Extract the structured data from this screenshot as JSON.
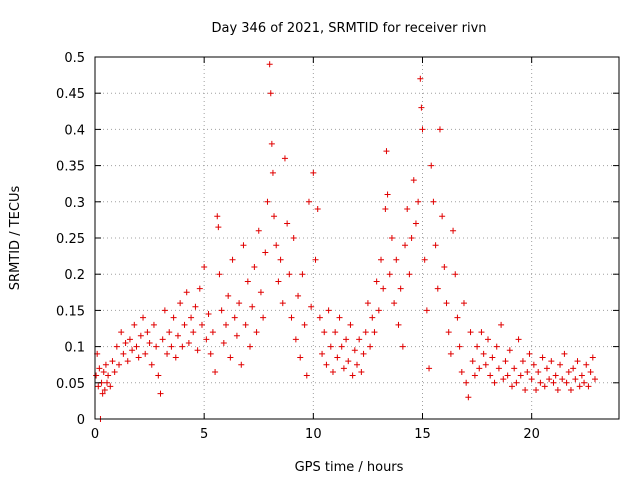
{
  "chart_data": {
    "type": "scatter",
    "title": "Day 346 of 2021, SRMTID for receiver rivn",
    "xlabel": "GPS time / hours",
    "ylabel": "SRMTID / TECUs",
    "xlim": [
      0,
      24
    ],
    "ylim": [
      0,
      0.5
    ],
    "xticks": [
      0,
      5,
      10,
      15,
      20
    ],
    "yticks": [
      0,
      0.05,
      0.1,
      0.15,
      0.2,
      0.25,
      0.3,
      0.35,
      0.4,
      0.45,
      0.5
    ],
    "xtick_labels": [
      "0",
      "5",
      "10",
      "15",
      "20"
    ],
    "ytick_labels": [
      "0",
      "0.05",
      "0.1",
      "0.15",
      "0.2",
      "0.25",
      "0.3",
      "0.35",
      "0.4",
      "0.45",
      "0.5"
    ],
    "grid": true,
    "marker": "plus",
    "color": "#e00000",
    "series": [
      {
        "points": [
          [
            0.05,
            0.06
          ],
          [
            0.1,
            0.09
          ],
          [
            0.15,
            0.045
          ],
          [
            0.2,
            0.07
          ],
          [
            0.25,
            0.0
          ],
          [
            0.3,
            0.05
          ],
          [
            0.35,
            0.035
          ],
          [
            0.4,
            0.065
          ],
          [
            0.45,
            0.04
          ],
          [
            0.5,
            0.075
          ],
          [
            0.55,
            0.05
          ],
          [
            0.6,
            0.06
          ],
          [
            0.7,
            0.045
          ],
          [
            0.8,
            0.08
          ],
          [
            0.9,
            0.065
          ],
          [
            1.0,
            0.1
          ],
          [
            1.1,
            0.075
          ],
          [
            1.2,
            0.12
          ],
          [
            1.3,
            0.09
          ],
          [
            1.4,
            0.105
          ],
          [
            1.5,
            0.08
          ],
          [
            1.6,
            0.11
          ],
          [
            1.7,
            0.095
          ],
          [
            1.8,
            0.13
          ],
          [
            1.9,
            0.1
          ],
          [
            2.0,
            0.085
          ],
          [
            2.1,
            0.115
          ],
          [
            2.2,
            0.14
          ],
          [
            2.3,
            0.09
          ],
          [
            2.4,
            0.12
          ],
          [
            2.5,
            0.105
          ],
          [
            2.6,
            0.075
          ],
          [
            2.7,
            0.13
          ],
          [
            2.8,
            0.1
          ],
          [
            2.9,
            0.06
          ],
          [
            3.0,
            0.035
          ],
          [
            3.1,
            0.11
          ],
          [
            3.2,
            0.15
          ],
          [
            3.3,
            0.09
          ],
          [
            3.4,
            0.12
          ],
          [
            3.5,
            0.1
          ],
          [
            3.6,
            0.14
          ],
          [
            3.7,
            0.085
          ],
          [
            3.8,
            0.115
          ],
          [
            3.9,
            0.16
          ],
          [
            4.0,
            0.1
          ],
          [
            4.1,
            0.13
          ],
          [
            4.2,
            0.175
          ],
          [
            4.3,
            0.105
          ],
          [
            4.4,
            0.14
          ],
          [
            4.5,
            0.12
          ],
          [
            4.6,
            0.155
          ],
          [
            4.7,
            0.095
          ],
          [
            4.8,
            0.18
          ],
          [
            4.9,
            0.13
          ],
          [
            5.0,
            0.21
          ],
          [
            5.1,
            0.11
          ],
          [
            5.2,
            0.145
          ],
          [
            5.3,
            0.09
          ],
          [
            5.4,
            0.12
          ],
          [
            5.5,
            0.065
          ],
          [
            5.6,
            0.28
          ],
          [
            5.65,
            0.265
          ],
          [
            5.7,
            0.2
          ],
          [
            5.8,
            0.15
          ],
          [
            5.9,
            0.105
          ],
          [
            6.0,
            0.13
          ],
          [
            6.1,
            0.17
          ],
          [
            6.2,
            0.085
          ],
          [
            6.3,
            0.22
          ],
          [
            6.4,
            0.14
          ],
          [
            6.5,
            0.115
          ],
          [
            6.6,
            0.16
          ],
          [
            6.7,
            0.075
          ],
          [
            6.8,
            0.24
          ],
          [
            6.9,
            0.13
          ],
          [
            7.0,
            0.19
          ],
          [
            7.1,
            0.1
          ],
          [
            7.2,
            0.155
          ],
          [
            7.3,
            0.21
          ],
          [
            7.4,
            0.12
          ],
          [
            7.5,
            0.26
          ],
          [
            7.6,
            0.175
          ],
          [
            7.7,
            0.14
          ],
          [
            7.8,
            0.23
          ],
          [
            7.9,
            0.3
          ],
          [
            8.0,
            0.49
          ],
          [
            8.05,
            0.45
          ],
          [
            8.1,
            0.38
          ],
          [
            8.15,
            0.34
          ],
          [
            8.2,
            0.28
          ],
          [
            8.3,
            0.24
          ],
          [
            8.4,
            0.19
          ],
          [
            8.5,
            0.22
          ],
          [
            8.6,
            0.16
          ],
          [
            8.7,
            0.36
          ],
          [
            8.8,
            0.27
          ],
          [
            8.9,
            0.2
          ],
          [
            9.0,
            0.14
          ],
          [
            9.1,
            0.25
          ],
          [
            9.2,
            0.11
          ],
          [
            9.3,
            0.17
          ],
          [
            9.4,
            0.085
          ],
          [
            9.5,
            0.2
          ],
          [
            9.6,
            0.13
          ],
          [
            9.7,
            0.06
          ],
          [
            9.8,
            0.3
          ],
          [
            9.9,
            0.155
          ],
          [
            10.0,
            0.34
          ],
          [
            10.1,
            0.22
          ],
          [
            10.2,
            0.29
          ],
          [
            10.3,
            0.14
          ],
          [
            10.4,
            0.09
          ],
          [
            10.5,
            0.12
          ],
          [
            10.6,
            0.075
          ],
          [
            10.7,
            0.15
          ],
          [
            10.8,
            0.1
          ],
          [
            10.9,
            0.065
          ],
          [
            11.0,
            0.12
          ],
          [
            11.1,
            0.085
          ],
          [
            11.2,
            0.14
          ],
          [
            11.3,
            0.1
          ],
          [
            11.4,
            0.07
          ],
          [
            11.5,
            0.11
          ],
          [
            11.6,
            0.08
          ],
          [
            11.7,
            0.13
          ],
          [
            11.8,
            0.06
          ],
          [
            11.9,
            0.095
          ],
          [
            12.0,
            0.075
          ],
          [
            12.1,
            0.11
          ],
          [
            12.2,
            0.065
          ],
          [
            12.3,
            0.09
          ],
          [
            12.4,
            0.12
          ],
          [
            12.5,
            0.16
          ],
          [
            12.6,
            0.1
          ],
          [
            12.7,
            0.14
          ],
          [
            12.8,
            0.12
          ],
          [
            12.9,
            0.19
          ],
          [
            13.0,
            0.15
          ],
          [
            13.1,
            0.22
          ],
          [
            13.2,
            0.18
          ],
          [
            13.3,
            0.29
          ],
          [
            13.35,
            0.37
          ],
          [
            13.4,
            0.31
          ],
          [
            13.5,
            0.2
          ],
          [
            13.6,
            0.25
          ],
          [
            13.7,
            0.16
          ],
          [
            13.8,
            0.22
          ],
          [
            13.9,
            0.13
          ],
          [
            14.0,
            0.18
          ],
          [
            14.1,
            0.1
          ],
          [
            14.2,
            0.24
          ],
          [
            14.3,
            0.29
          ],
          [
            14.4,
            0.2
          ],
          [
            14.5,
            0.25
          ],
          [
            14.6,
            0.33
          ],
          [
            14.7,
            0.27
          ],
          [
            14.8,
            0.3
          ],
          [
            14.9,
            0.47
          ],
          [
            14.95,
            0.43
          ],
          [
            15.0,
            0.4
          ],
          [
            15.1,
            0.22
          ],
          [
            15.2,
            0.15
          ],
          [
            15.3,
            0.07
          ],
          [
            15.4,
            0.35
          ],
          [
            15.5,
            0.3
          ],
          [
            15.6,
            0.24
          ],
          [
            15.7,
            0.18
          ],
          [
            15.8,
            0.4
          ],
          [
            15.9,
            0.28
          ],
          [
            16.0,
            0.21
          ],
          [
            16.1,
            0.16
          ],
          [
            16.2,
            0.12
          ],
          [
            16.3,
            0.09
          ],
          [
            16.4,
            0.26
          ],
          [
            16.5,
            0.2
          ],
          [
            16.6,
            0.14
          ],
          [
            16.7,
            0.1
          ],
          [
            16.8,
            0.065
          ],
          [
            16.9,
            0.16
          ],
          [
            17.0,
            0.05
          ],
          [
            17.1,
            0.03
          ],
          [
            17.2,
            0.12
          ],
          [
            17.3,
            0.08
          ],
          [
            17.4,
            0.06
          ],
          [
            17.5,
            0.1
          ],
          [
            17.6,
            0.07
          ],
          [
            17.7,
            0.12
          ],
          [
            17.8,
            0.09
          ],
          [
            17.9,
            0.075
          ],
          [
            18.0,
            0.11
          ],
          [
            18.1,
            0.06
          ],
          [
            18.2,
            0.085
          ],
          [
            18.3,
            0.05
          ],
          [
            18.4,
            0.1
          ],
          [
            18.5,
            0.07
          ],
          [
            18.6,
            0.13
          ],
          [
            18.7,
            0.055
          ],
          [
            18.8,
            0.08
          ],
          [
            18.9,
            0.06
          ],
          [
            19.0,
            0.095
          ],
          [
            19.1,
            0.045
          ],
          [
            19.2,
            0.07
          ],
          [
            19.3,
            0.05
          ],
          [
            19.4,
            0.11
          ],
          [
            19.5,
            0.06
          ],
          [
            19.6,
            0.08
          ],
          [
            19.7,
            0.04
          ],
          [
            19.8,
            0.065
          ],
          [
            19.9,
            0.09
          ],
          [
            20.0,
            0.055
          ],
          [
            20.1,
            0.075
          ],
          [
            20.2,
            0.04
          ],
          [
            20.3,
            0.065
          ],
          [
            20.4,
            0.05
          ],
          [
            20.5,
            0.085
          ],
          [
            20.6,
            0.045
          ],
          [
            20.7,
            0.07
          ],
          [
            20.8,
            0.055
          ],
          [
            20.9,
            0.08
          ],
          [
            21.0,
            0.05
          ],
          [
            21.1,
            0.06
          ],
          [
            21.2,
            0.04
          ],
          [
            21.3,
            0.075
          ],
          [
            21.4,
            0.055
          ],
          [
            21.5,
            0.09
          ],
          [
            21.6,
            0.05
          ],
          [
            21.7,
            0.065
          ],
          [
            21.8,
            0.04
          ],
          [
            21.9,
            0.07
          ],
          [
            22.0,
            0.055
          ],
          [
            22.1,
            0.08
          ],
          [
            22.2,
            0.045
          ],
          [
            22.3,
            0.06
          ],
          [
            22.4,
            0.05
          ],
          [
            22.5,
            0.075
          ],
          [
            22.6,
            0.045
          ],
          [
            22.7,
            0.065
          ],
          [
            22.8,
            0.085
          ],
          [
            22.9,
            0.055
          ]
        ]
      }
    ]
  }
}
